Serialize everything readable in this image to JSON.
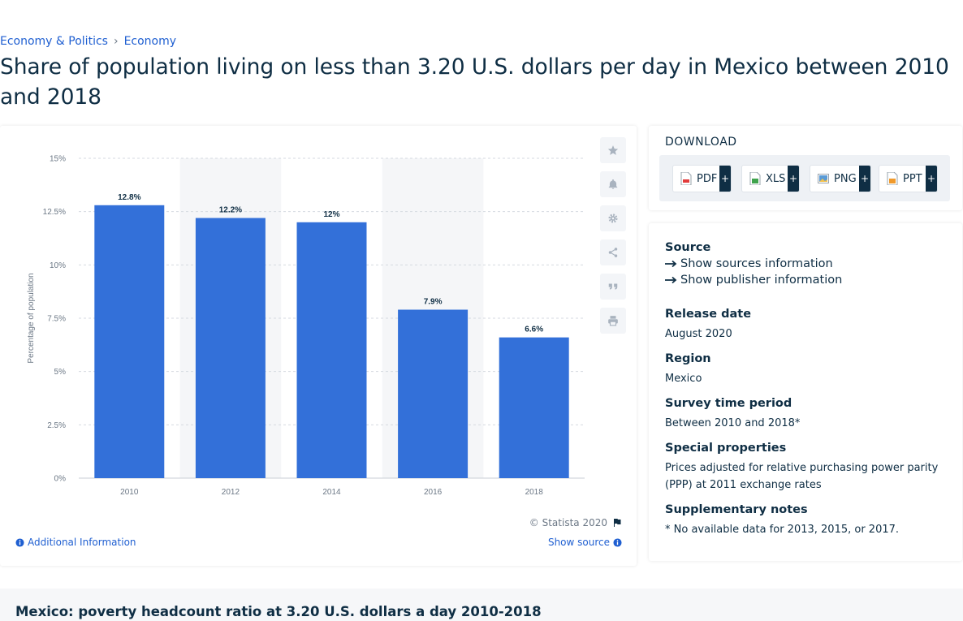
{
  "breadcrumb": {
    "items": [
      "Economy & Politics",
      "Economy"
    ],
    "separator": "›"
  },
  "page_title": "Share of population living on less than 3.20 U.S. dollars per day in Mexico between 2010 and 2018",
  "colors": {
    "bar": "#3370d9",
    "accent": "#1f5fd1",
    "text": "#0f2e44",
    "grid_band": "#f5f6f8"
  },
  "chart_data": {
    "type": "bar",
    "categories": [
      "2010",
      "2012",
      "2014",
      "2016",
      "2018"
    ],
    "values": [
      12.8,
      12.2,
      12,
      7.9,
      6.6
    ],
    "data_labels": [
      "12.8%",
      "12.2%",
      "12%",
      "7.9%",
      "6.6%"
    ],
    "ylabel": "Percentage of population",
    "xlabel": "",
    "ylim": [
      0,
      15
    ],
    "yticks": [
      0,
      2.5,
      5,
      7.5,
      10,
      12.5,
      15
    ],
    "ytick_labels": [
      "0%",
      "2.5%",
      "5%",
      "7.5%",
      "10%",
      "12.5%",
      "15%"
    ],
    "grid": true
  },
  "chart_footer": {
    "copyright": "© Statista 2020",
    "additional_info": "Additional Information",
    "show_source": "Show source"
  },
  "side_tools": [
    "star-icon",
    "bell-icon",
    "gear-icon",
    "share-icon",
    "quote-icon",
    "print-icon"
  ],
  "download": {
    "title": "DOWNLOAD",
    "buttons": [
      {
        "label": "PDF",
        "plus": "+"
      },
      {
        "label": "XLS",
        "plus": "+"
      },
      {
        "label": "PNG",
        "plus": "+"
      },
      {
        "label": "PPT",
        "plus": "+"
      }
    ]
  },
  "info": {
    "source_label": "Source",
    "show_sources": "Show sources information",
    "show_publisher": "Show publisher information",
    "release_label": "Release date",
    "release_value": "August 2020",
    "region_label": "Region",
    "region_value": "Mexico",
    "survey_label": "Survey time period",
    "survey_value": "Between 2010 and 2018*",
    "special_label": "Special properties",
    "special_value": "Prices adjusted for relative purchasing power parity (PPP) at 2011 exchange rates",
    "supp_label": "Supplementary notes",
    "supp_value": "* No available data for 2013, 2015, or 2017."
  },
  "bottom_title": "Mexico: poverty headcount ratio at 3.20 U.S. dollars a day 2010-2018"
}
